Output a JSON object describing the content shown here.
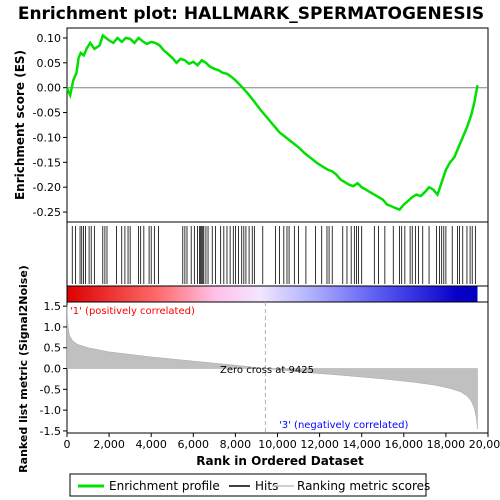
{
  "chart_data": {
    "type": "line",
    "title": "Enrichment plot: HALLMARK_SPERMATOGENESIS",
    "top_panel": {
      "ylabel": "Enrichment score (ES)",
      "ylim": [
        -0.27,
        0.12
      ],
      "yticks": [
        -0.25,
        -0.2,
        -0.15,
        -0.1,
        -0.05,
        0.0,
        0.05,
        0.1
      ],
      "ytick_labels": [
        "-0.25",
        "-0.20",
        "-0.15",
        "-0.10",
        "-0.05",
        "0.00",
        "0.05",
        "0.10"
      ],
      "line_color": "#00e000",
      "series": [
        {
          "name": "Enrichment profile",
          "x": [
            0,
            150,
            300,
            450,
            550,
            650,
            800,
            950,
            1100,
            1300,
            1550,
            1700,
            1850,
            2000,
            2200,
            2400,
            2600,
            2800,
            3000,
            3200,
            3400,
            3600,
            3800,
            4000,
            4200,
            4400,
            4600,
            4800,
            5000,
            5200,
            5400,
            5600,
            5800,
            6000,
            6200,
            6400,
            6600,
            6800,
            7000,
            7200,
            7400,
            7600,
            7800,
            8000,
            8300,
            8600,
            8900,
            9200,
            9500,
            9800,
            10100,
            10400,
            10700,
            11000,
            11300,
            11600,
            11900,
            12200,
            12400,
            12600,
            12800,
            13000,
            13200,
            13400,
            13600,
            13800,
            14000,
            14200,
            14400,
            14600,
            14800,
            15000,
            15200,
            15400,
            15600,
            15800,
            16000,
            16200,
            16400,
            16600,
            16800,
            17000,
            17200,
            17400,
            17600,
            17800,
            18000,
            18200,
            18400,
            18600,
            18800,
            19000,
            19200,
            19350,
            19500
          ],
          "y": [
            0.0,
            -0.015,
            0.015,
            0.03,
            0.06,
            0.07,
            0.065,
            0.08,
            0.09,
            0.078,
            0.085,
            0.105,
            0.1,
            0.095,
            0.09,
            0.1,
            0.092,
            0.1,
            0.098,
            0.09,
            0.1,
            0.093,
            0.088,
            0.092,
            0.09,
            0.085,
            0.075,
            0.068,
            0.06,
            0.05,
            0.058,
            0.055,
            0.048,
            0.052,
            0.045,
            0.055,
            0.05,
            0.042,
            0.038,
            0.035,
            0.03,
            0.028,
            0.022,
            0.015,
            0.002,
            -0.012,
            -0.028,
            -0.045,
            -0.06,
            -0.075,
            -0.09,
            -0.1,
            -0.11,
            -0.12,
            -0.132,
            -0.142,
            -0.152,
            -0.16,
            -0.165,
            -0.168,
            -0.175,
            -0.185,
            -0.19,
            -0.195,
            -0.198,
            -0.192,
            -0.2,
            -0.205,
            -0.21,
            -0.215,
            -0.22,
            -0.225,
            -0.235,
            -0.238,
            -0.242,
            -0.245,
            -0.235,
            -0.228,
            -0.22,
            -0.215,
            -0.218,
            -0.21,
            -0.2,
            -0.205,
            -0.215,
            -0.19,
            -0.165,
            -0.15,
            -0.14,
            -0.12,
            -0.1,
            -0.08,
            -0.055,
            -0.03,
            0.005
          ]
        }
      ]
    },
    "middle_panel": {
      "hits_label": "Hits",
      "hit_positions": [
        250,
        400,
        620,
        700,
        780,
        880,
        1050,
        1150,
        1300,
        1700,
        1800,
        1900,
        2350,
        2600,
        2750,
        2900,
        3000,
        3400,
        3500,
        3650,
        3900,
        4000,
        4150,
        4350,
        5500,
        5600,
        5700,
        5900,
        6050,
        6200,
        6300,
        6350,
        6400,
        6450,
        6500,
        6600,
        6700,
        6900,
        7050,
        7300,
        7450,
        7600,
        7750,
        7900,
        8000,
        8150,
        8300,
        8400,
        8500,
        8650,
        8800,
        8900,
        9300,
        9900,
        10100,
        10300,
        10450,
        10550,
        10800,
        11000,
        11350,
        11800,
        12100,
        12350,
        12450,
        12600,
        13100,
        13300,
        13500,
        13650,
        13750,
        13850,
        14000,
        14600,
        14800,
        15100,
        15500,
        15800,
        15900,
        16050,
        16300,
        16400,
        16550,
        16700,
        16900,
        17200,
        17550,
        17700,
        17800,
        17900,
        18000,
        18300,
        18550,
        18650,
        18800,
        19000,
        19150,
        19250,
        19400
      ]
    },
    "bottom_panel": {
      "ylabel": "Ranked list metric (Signal2Noise)",
      "xlabel": "Rank in Ordered Dataset",
      "ylim": [
        -1.55,
        1.6
      ],
      "yticks": [
        -1.5,
        -1.0,
        -0.5,
        0.0,
        0.5,
        1.0,
        1.5
      ],
      "ytick_labels": [
        "-1.5",
        "-1.0",
        "-0.5",
        "0.0",
        "0.5",
        "1.0",
        "1.5"
      ],
      "xlim": [
        0,
        20000
      ],
      "xticks": [
        0,
        2000,
        4000,
        6000,
        8000,
        10000,
        12000,
        14000,
        16000,
        18000,
        20000
      ],
      "xtick_labels": [
        "0",
        "2,000",
        "4,000",
        "6,000",
        "8,000",
        "10,000",
        "12,000",
        "14,000",
        "16,000",
        "18,000",
        "20,000"
      ],
      "metric_x": [
        0,
        20,
        60,
        120,
        250,
        500,
        1000,
        2000,
        4000,
        6000,
        8000,
        9425,
        11000,
        13000,
        15000,
        16500,
        17500,
        18200,
        18700,
        19000,
        19200,
        19350,
        19450,
        19500
      ],
      "metric_y": [
        1.52,
        1.2,
        0.95,
        0.8,
        0.68,
        0.58,
        0.5,
        0.4,
        0.28,
        0.18,
        0.08,
        0.0,
        -0.08,
        -0.16,
        -0.25,
        -0.33,
        -0.4,
        -0.48,
        -0.56,
        -0.66,
        -0.78,
        -0.95,
        -1.2,
        -1.45
      ],
      "zero_cross_label": "Zero cross at 9425",
      "zero_cross_x": 9425,
      "positive_label": "'1' (positively correlated)",
      "negative_label": "'3' (negatively correlated)",
      "positive_color": "#ff0000",
      "negative_color": "#0000ff"
    },
    "legend": {
      "placement": "bottom",
      "entries": [
        {
          "label": "Enrichment profile",
          "color": "#00e000"
        },
        {
          "label": "Hits",
          "color": "#000000"
        },
        {
          "label": "Ranking metric scores",
          "color": "#c0c0c0"
        }
      ]
    }
  }
}
